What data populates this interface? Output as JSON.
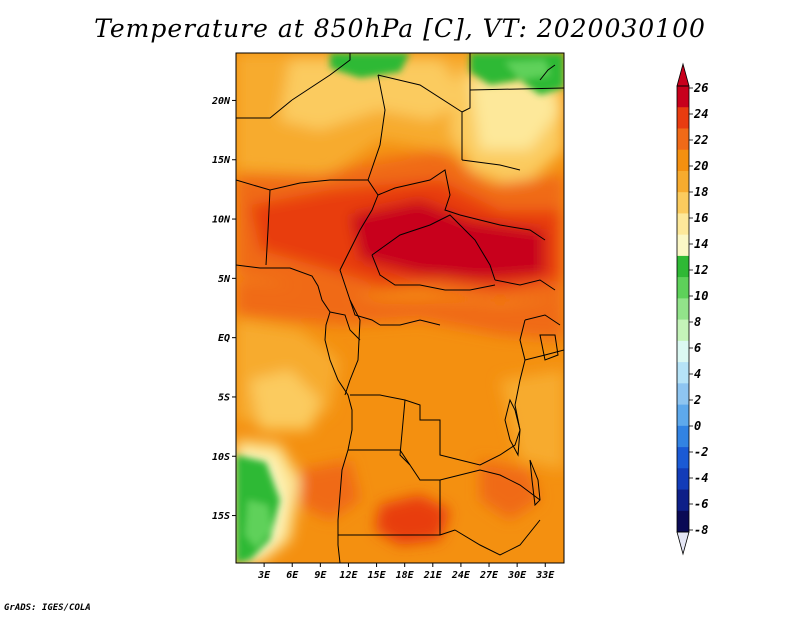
{
  "title": "Temperature at 850hPa [C], VT: 2020030100",
  "credit": "GrADS: IGES/COLA",
  "map": {
    "lon_range": [
      0,
      35
    ],
    "lat_range": [
      -19,
      24
    ],
    "lat_ticks": [
      {
        "value": 20,
        "label": "20N"
      },
      {
        "value": 15,
        "label": "15N"
      },
      {
        "value": 10,
        "label": "10N"
      },
      {
        "value": 5,
        "label": "5N"
      },
      {
        "value": 0,
        "label": "EQ"
      },
      {
        "value": -5,
        "label": "5S"
      },
      {
        "value": -10,
        "label": "10S"
      },
      {
        "value": -15,
        "label": "15S"
      }
    ],
    "lon_ticks": [
      {
        "value": 3,
        "label": "3E"
      },
      {
        "value": 6,
        "label": "6E"
      },
      {
        "value": 9,
        "label": "9E"
      },
      {
        "value": 12,
        "label": "12E"
      },
      {
        "value": 15,
        "label": "15E"
      },
      {
        "value": 18,
        "label": "18E"
      },
      {
        "value": 21,
        "label": "21E"
      },
      {
        "value": 24,
        "label": "24E"
      },
      {
        "value": 27,
        "label": "27E"
      },
      {
        "value": 30,
        "label": "30E"
      },
      {
        "value": 33,
        "label": "33E"
      }
    ]
  },
  "colorbar": {
    "levels": [
      "26",
      "24",
      "22",
      "20",
      "18",
      "16",
      "14",
      "12",
      "10",
      "8",
      "6",
      "4",
      "2",
      "0",
      "-2",
      "-4",
      "-6",
      "-8"
    ],
    "colors": [
      "#c8001c",
      "#e83c10",
      "#f06a18",
      "#f49010",
      "#f7ab2e",
      "#fbcb5e",
      "#fde89a",
      "#fbf7c6",
      "#2fb935",
      "#5ed15a",
      "#92e38a",
      "#c4f3b9",
      "#dbf8f2",
      "#b6e3f7",
      "#8ec5f1",
      "#5ea9ec",
      "#3283e3",
      "#1a5ad5",
      "#123cb8",
      "#0d1f88",
      "#0a0a55"
    ],
    "over_color": "#c8001c",
    "under_color": "#e4e6f5"
  }
}
